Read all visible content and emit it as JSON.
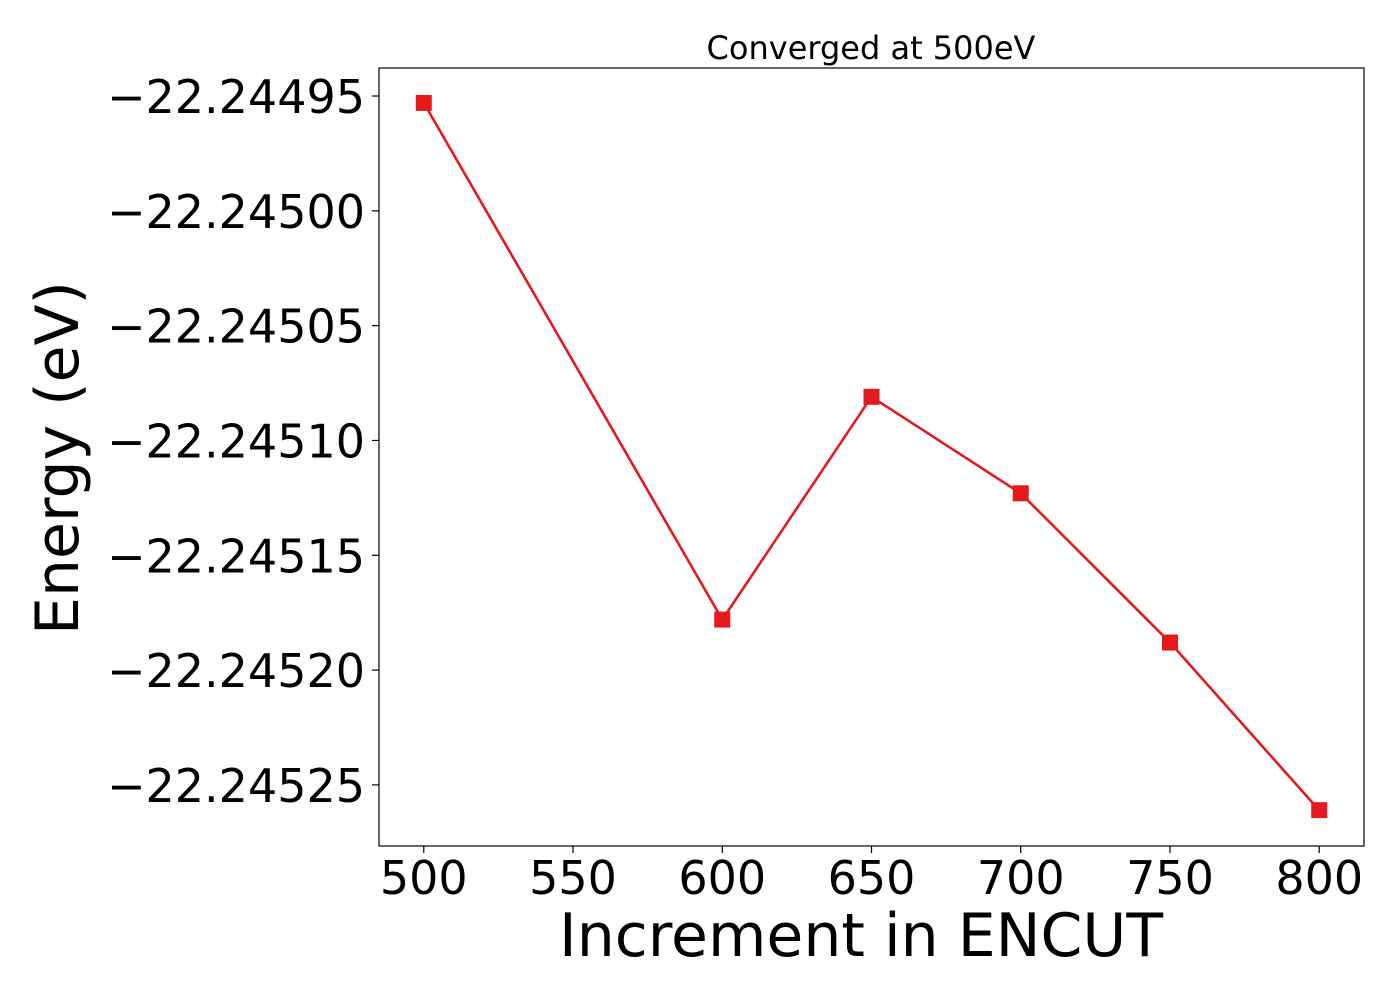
{
  "chart_data": {
    "type": "line",
    "title": "Converged at 500eV",
    "xlabel": "Increment in ENCUT",
    "ylabel": "Energy (eV)",
    "x": [
      500,
      600,
      650,
      700,
      750,
      800
    ],
    "series": [
      {
        "values": [
          -22.244953,
          -22.245178,
          -22.245081,
          -22.245123,
          -22.245188,
          -22.245261
        ],
        "color": "#e41a1c",
        "marker": "square"
      }
    ],
    "x_ticks": [
      500,
      550,
      600,
      650,
      700,
      750,
      800
    ],
    "x_tick_labels": [
      "500",
      "550",
      "600",
      "650",
      "700",
      "750",
      "800"
    ],
    "y_ticks": [
      -22.24495,
      -22.245,
      -22.24505,
      -22.2451,
      -22.24515,
      -22.2452,
      -22.24525
    ],
    "y_tick_labels": [
      "−22.24495",
      "−22.24500",
      "−22.24505",
      "−22.24510",
      "−22.24515",
      "−22.24520",
      "−22.24525"
    ],
    "xlim": [
      485,
      815
    ],
    "ylim": [
      -22.2452766,
      -22.2449378
    ],
    "grid": false,
    "legend": "none"
  }
}
